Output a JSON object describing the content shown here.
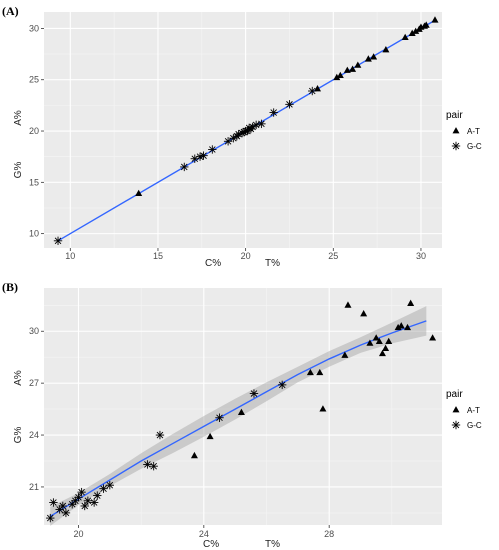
{
  "colors": {
    "panel_bg": "#ebebeb",
    "grid_major": "#ffffff",
    "grid_minor": "#f5f5f5",
    "line": "#3366ff",
    "ribbon": "#999999",
    "marker": "#000000"
  },
  "chart_data": [
    {
      "type": "scatter",
      "panel_label": "(A)",
      "xlabel_parts": [
        "C%",
        "T%"
      ],
      "ylabel_parts": [
        "A%",
        "G%"
      ],
      "xlim": [
        8.5,
        31.2
      ],
      "ylim": [
        8.6,
        31.6
      ],
      "xticks": [
        10,
        15,
        20,
        25,
        30
      ],
      "yticks": [
        10,
        15,
        20,
        25,
        30
      ],
      "grid": true,
      "legend": {
        "title": "pair",
        "position": "right",
        "entries": [
          {
            "label": "A-T",
            "shape": "triangle-icon"
          },
          {
            "label": "G-C",
            "shape": "asterisk-icon"
          }
        ]
      },
      "trend": {
        "type": "linear",
        "x": [
          9.3,
          30.8
        ],
        "y": [
          9.3,
          30.8
        ],
        "ribbon": false
      },
      "series": [
        {
          "name": "A-T",
          "shape": "triangle",
          "points": [
            [
              13.9,
              13.9
            ],
            [
              24.1,
              24.1
            ],
            [
              25.2,
              25.2
            ],
            [
              25.4,
              25.4
            ],
            [
              25.8,
              25.9
            ],
            [
              26.1,
              26.0
            ],
            [
              26.4,
              26.4
            ],
            [
              27.0,
              27.0
            ],
            [
              27.3,
              27.2
            ],
            [
              28.0,
              27.9
            ],
            [
              29.1,
              29.1
            ],
            [
              29.5,
              29.5
            ],
            [
              29.7,
              29.7
            ],
            [
              29.9,
              29.9
            ],
            [
              30.0,
              30.1
            ],
            [
              30.2,
              30.2
            ],
            [
              30.3,
              30.3
            ],
            [
              30.8,
              30.8
            ]
          ]
        },
        {
          "name": "G-C",
          "shape": "asterisk",
          "points": [
            [
              9.3,
              9.3
            ],
            [
              16.5,
              16.5
            ],
            [
              17.1,
              17.3
            ],
            [
              17.4,
              17.5
            ],
            [
              17.6,
              17.6
            ],
            [
              18.1,
              18.2
            ],
            [
              19.0,
              19.0
            ],
            [
              19.3,
              19.3
            ],
            [
              19.5,
              19.5
            ],
            [
              19.6,
              19.7
            ],
            [
              19.8,
              19.8
            ],
            [
              19.9,
              19.9
            ],
            [
              20.0,
              20.0
            ],
            [
              20.1,
              20.0
            ],
            [
              20.2,
              20.3
            ],
            [
              20.3,
              20.2
            ],
            [
              20.4,
              20.4
            ],
            [
              20.6,
              20.6
            ],
            [
              20.9,
              20.7
            ],
            [
              21.6,
              21.8
            ],
            [
              22.5,
              22.6
            ],
            [
              23.8,
              23.9
            ]
          ]
        }
      ]
    },
    {
      "type": "scatter",
      "panel_label": "(B)",
      "xlabel_parts": [
        "C%",
        "T%"
      ],
      "ylabel_parts": [
        "A%",
        "G%"
      ],
      "xlim": [
        18.9,
        31.6
      ],
      "ylim": [
        18.8,
        32.5
      ],
      "xticks": [
        20,
        24,
        28
      ],
      "yticks": [
        21,
        24,
        27,
        30
      ],
      "grid": true,
      "legend": {
        "title": "pair",
        "position": "right",
        "entries": [
          {
            "label": "A-T",
            "shape": "triangle-icon"
          },
          {
            "label": "G-C",
            "shape": "asterisk-icon"
          }
        ]
      },
      "trend": {
        "type": "loess",
        "x": [
          19.1,
          20,
          21,
          22,
          23,
          24,
          25,
          26,
          27,
          28,
          29,
          30,
          31.1
        ],
        "y": [
          19.3,
          20.3,
          21.4,
          22.5,
          23.5,
          24.5,
          25.5,
          26.5,
          27.5,
          28.4,
          29.2,
          29.9,
          30.6
        ],
        "upper": [
          19.85,
          20.65,
          21.75,
          22.95,
          24.05,
          25.1,
          26.1,
          27.05,
          27.95,
          28.85,
          29.65,
          30.5,
          31.45
        ],
        "lower": [
          18.75,
          19.95,
          21.05,
          22.05,
          22.95,
          23.9,
          24.9,
          25.95,
          27.05,
          27.95,
          28.75,
          29.3,
          29.75
        ],
        "ribbon": true
      },
      "series": [
        {
          "name": "A-T",
          "shape": "triangle",
          "points": [
            [
              23.7,
              22.8
            ],
            [
              24.2,
              23.9
            ],
            [
              25.2,
              25.3
            ],
            [
              27.4,
              27.6
            ],
            [
              27.7,
              27.6
            ],
            [
              27.8,
              25.5
            ],
            [
              28.5,
              28.6
            ],
            [
              28.6,
              31.5
            ],
            [
              29.1,
              31.0
            ],
            [
              29.3,
              29.3
            ],
            [
              29.5,
              29.6
            ],
            [
              29.6,
              29.4
            ],
            [
              29.7,
              28.7
            ],
            [
              29.8,
              29.0
            ],
            [
              29.9,
              29.4
            ],
            [
              30.2,
              30.2
            ],
            [
              30.3,
              30.3
            ],
            [
              30.5,
              30.2
            ],
            [
              30.6,
              31.6
            ],
            [
              31.3,
              29.6
            ]
          ]
        },
        {
          "name": "G-C",
          "shape": "asterisk",
          "points": [
            [
              19.1,
              19.2
            ],
            [
              19.2,
              20.1
            ],
            [
              19.4,
              19.7
            ],
            [
              19.5,
              19.9
            ],
            [
              19.6,
              19.5
            ],
            [
              19.8,
              20.0
            ],
            [
              19.9,
              20.2
            ],
            [
              20.0,
              20.4
            ],
            [
              20.1,
              20.7
            ],
            [
              20.2,
              19.9
            ],
            [
              20.3,
              20.2
            ],
            [
              20.5,
              20.1
            ],
            [
              20.6,
              20.5
            ],
            [
              20.8,
              20.9
            ],
            [
              21.0,
              21.1
            ],
            [
              22.2,
              22.3
            ],
            [
              22.4,
              22.2
            ],
            [
              22.6,
              24.0
            ],
            [
              24.5,
              25.0
            ],
            [
              25.6,
              26.4
            ],
            [
              26.5,
              26.9
            ]
          ]
        }
      ]
    }
  ]
}
